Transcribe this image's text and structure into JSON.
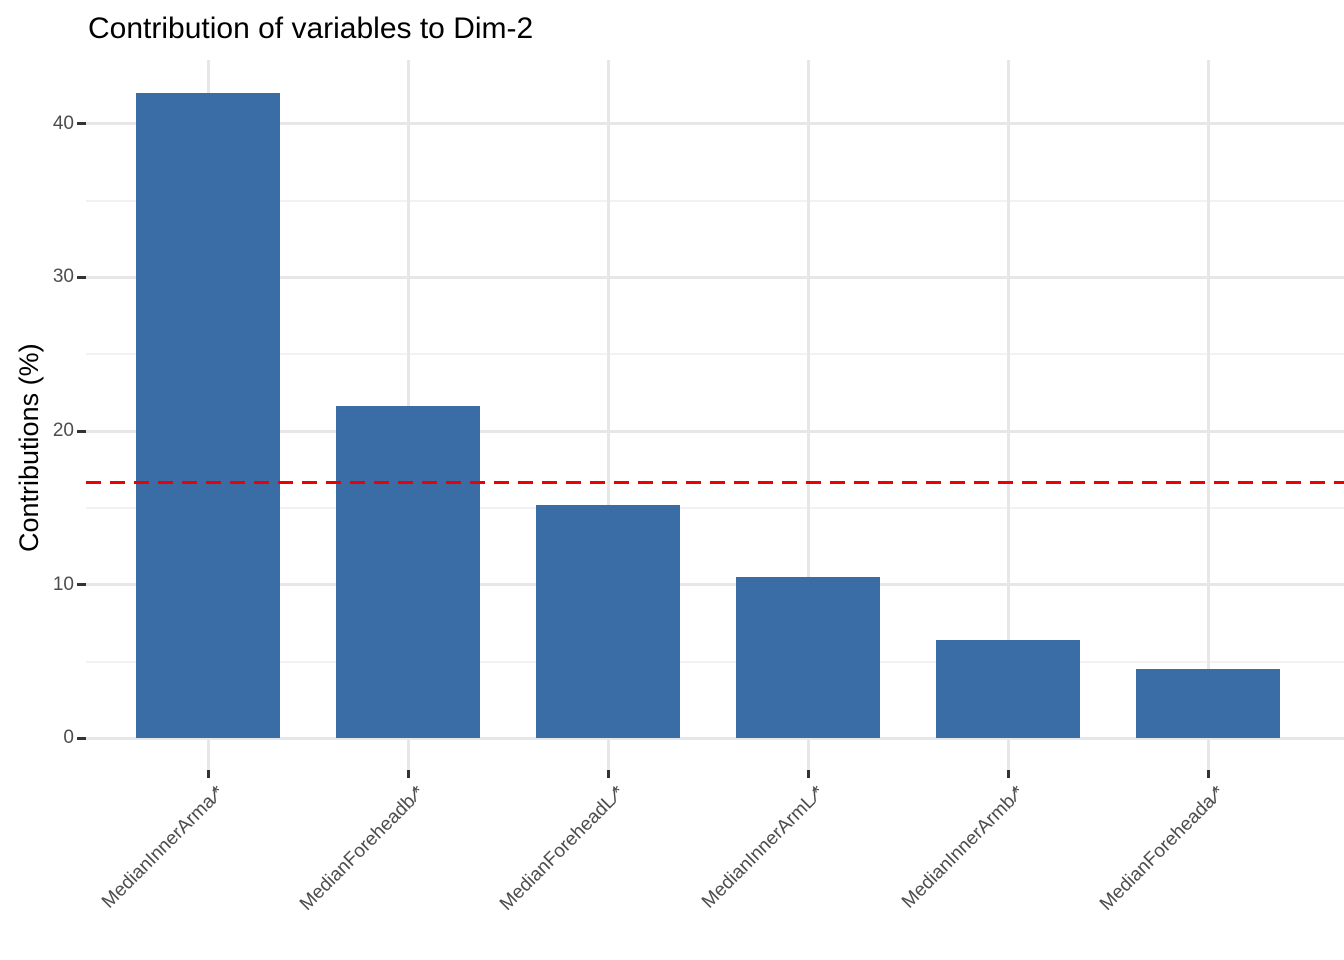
{
  "title": "Contribution of variables to Dim-2",
  "y_axis": {
    "label": "Contributions (%)",
    "major_ticks": [
      0,
      10,
      20,
      30,
      40
    ],
    "minor_ticks": [
      5,
      15,
      25,
      35
    ]
  },
  "x_labels": [
    {
      "name": "MedianInnerArma",
      "sep": "/",
      "star": "*"
    },
    {
      "name": "MedianForeheadb",
      "sep": "/",
      "star": "*"
    },
    {
      "name": "MedianForeheadL",
      "sep": "/",
      "star": "*"
    },
    {
      "name": "MedianInnerArmL",
      "sep": "/",
      "star": "*"
    },
    {
      "name": "MedianInnerArmb",
      "sep": "/",
      "star": "*"
    },
    {
      "name": "MedianForeheada",
      "sep": "/",
      "star": "*"
    }
  ],
  "chart_data": {
    "type": "bar",
    "title": "Contribution of variables to Dim-2",
    "categories": [
      "MedianInnerArma/*",
      "MedianForeheadb/*",
      "MedianForeheadL/*",
      "MedianInnerArmL/*",
      "MedianInnerArmb/*",
      "MedianForeheada/*"
    ],
    "values": [
      42.0,
      21.6,
      15.2,
      10.5,
      6.4,
      4.5
    ],
    "xlabel": "",
    "ylabel": "Contributions (%)",
    "ylim": [
      0,
      44
    ],
    "grid": true,
    "legend_position": "none",
    "reference_line": {
      "value": 16.67,
      "color": "#ee0000",
      "linetype": "dashed"
    }
  },
  "colors": {
    "bar": "#3a6ca6",
    "reference_line": "#ee0000",
    "grid_major": "#e7e7e7",
    "grid_minor": "#f2f2f2",
    "axis_tick": "#333333",
    "tick_label": "#4d4d4d",
    "title_text": "#000000"
  }
}
